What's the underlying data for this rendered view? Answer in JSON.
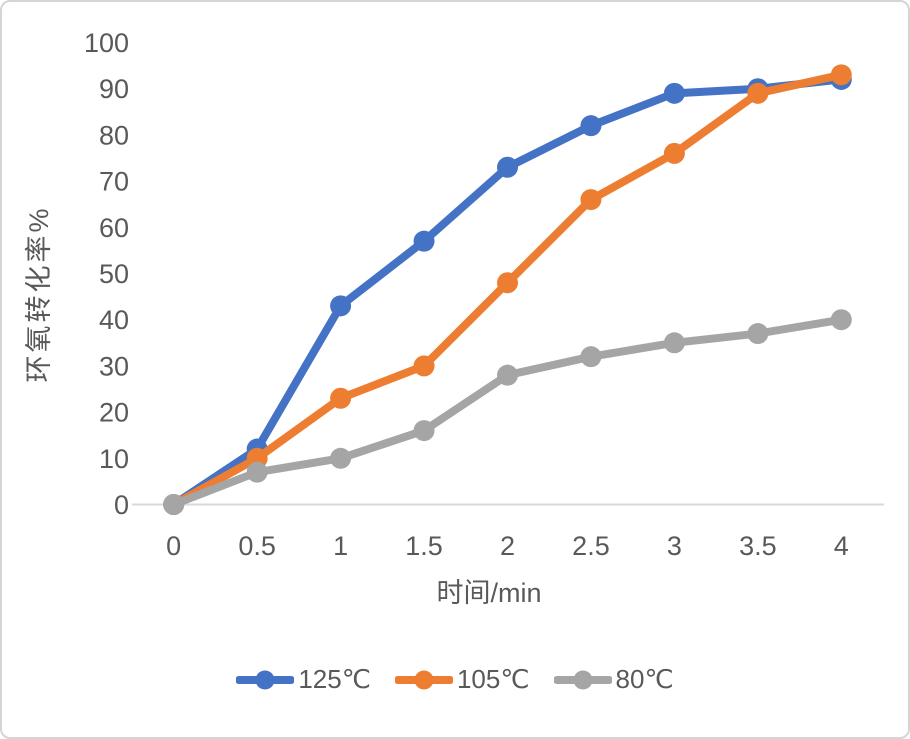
{
  "chart_data": {
    "type": "line",
    "title": "",
    "xlabel": "时间/min",
    "ylabel": "环氧转化率%",
    "x": [
      0,
      0.5,
      1,
      1.5,
      2,
      2.5,
      3,
      3.5,
      4
    ],
    "xtick_labels": [
      "0",
      "0.5",
      "1",
      "1.5",
      "2",
      "2.5",
      "3",
      "3.5",
      "4"
    ],
    "ytick_labels": [
      "0",
      "10",
      "20",
      "30",
      "40",
      "50",
      "60",
      "70",
      "80",
      "90",
      "100"
    ],
    "yticks": [
      0,
      10,
      20,
      30,
      40,
      50,
      60,
      70,
      80,
      90,
      100
    ],
    "xlim": [
      0,
      4
    ],
    "ylim": [
      0,
      100
    ],
    "grid": false,
    "legend_position": "bottom",
    "series": [
      {
        "name": "125℃",
        "color": "#4472C4",
        "values": [
          0,
          12,
          43,
          57,
          73,
          82,
          89,
          90,
          92
        ]
      },
      {
        "name": "105℃",
        "color": "#ED7D31",
        "values": [
          0,
          10,
          23,
          30,
          48,
          66,
          76,
          89,
          93
        ]
      },
      {
        "name": "80℃",
        "color": "#A5A5A5",
        "values": [
          0,
          7,
          10,
          16,
          28,
          32,
          35,
          37,
          40
        ]
      }
    ],
    "colors": {
      "axis_line": "#D9D9D9",
      "text": "#595959",
      "frame_border": "#D5D5D5",
      "background": "#FFFFFF"
    }
  }
}
